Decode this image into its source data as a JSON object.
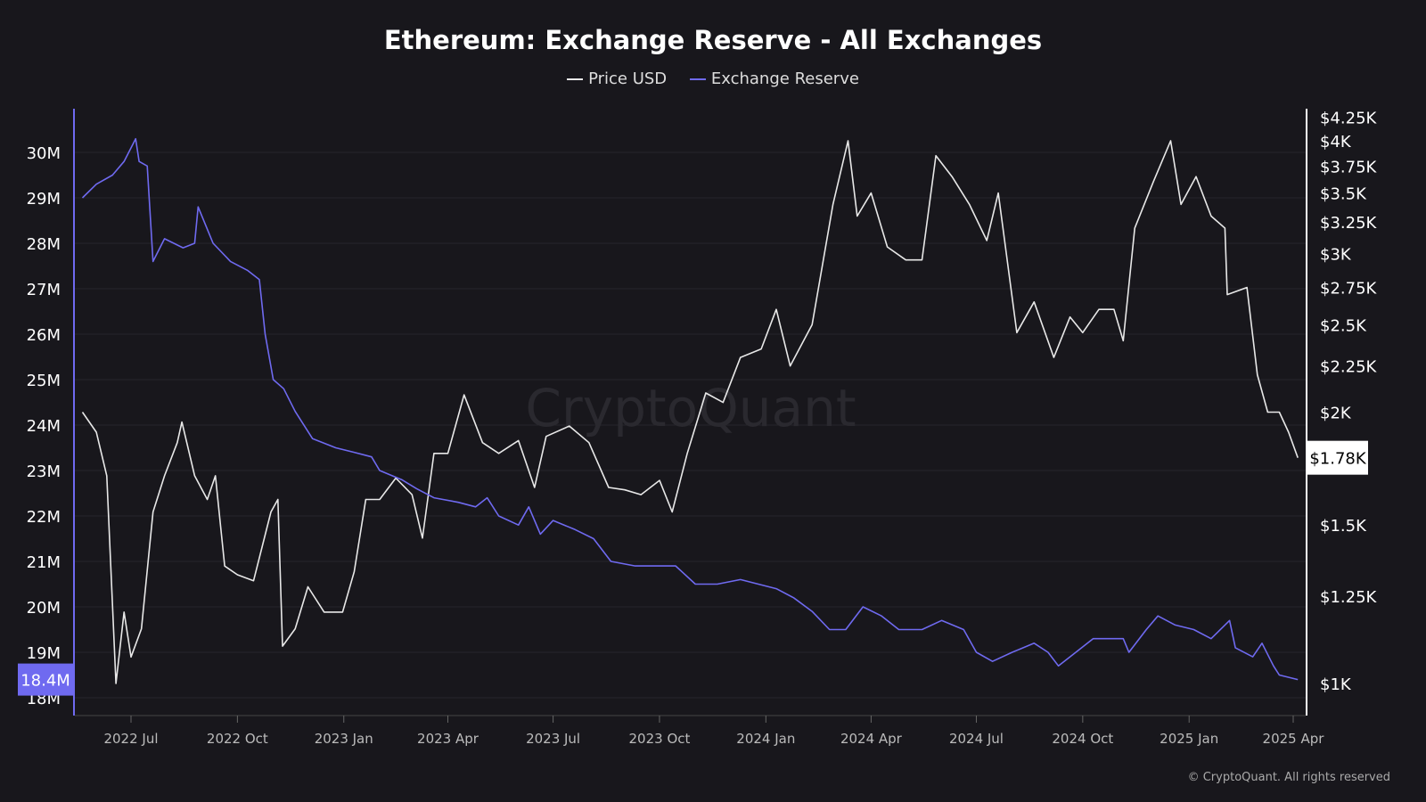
{
  "chart_data": {
    "type": "line",
    "title": "Ethereum: Exchange Reserve - All Exchanges",
    "watermark": "CryptoQuant",
    "copyright": "© CryptoQuant. All rights reserved",
    "legend": [
      "Price USD",
      "Exchange Reserve"
    ],
    "legend_position": "top-center",
    "grid": true,
    "colors": {
      "background": "#18171c",
      "price": "#e8e8e8",
      "reserve": "#6f6af0",
      "grid": "#26252b"
    },
    "x_ticks": [
      "2022 Jul",
      "2022 Oct",
      "2023 Jan",
      "2023 Apr",
      "2023 Jul",
      "2023 Oct",
      "2024 Jan",
      "2024 Apr",
      "2024 Jul",
      "2024 Oct",
      "2025 Jan",
      "2025 Apr"
    ],
    "x_tick_dates": [
      "2022-07-01",
      "2022-10-01",
      "2023-01-01",
      "2023-04-01",
      "2023-07-01",
      "2023-10-01",
      "2024-01-01",
      "2024-04-01",
      "2024-07-01",
      "2024-10-01",
      "2025-01-01",
      "2025-04-01"
    ],
    "left_axis": {
      "scale": "linear",
      "range": [
        17.6,
        30.9
      ],
      "ticks": [
        18,
        19,
        20,
        21,
        22,
        23,
        24,
        25,
        26,
        27,
        28,
        29,
        30
      ],
      "tick_labels": [
        "18M",
        "19M",
        "20M",
        "21M",
        "22M",
        "23M",
        "24M",
        "25M",
        "26M",
        "27M",
        "28M",
        "29M",
        "30M"
      ],
      "current_label": "18.4M",
      "current_value": 18.4
    },
    "right_axis": {
      "scale": "log",
      "ticks": [
        1000,
        1250,
        1500,
        1780,
        2000,
        2250,
        2500,
        2750,
        3000,
        3250,
        3500,
        3750,
        4000,
        4250
      ],
      "tick_labels": [
        "$1K",
        "$1.25K",
        "$1.5K",
        "$1.78K",
        "$2K",
        "$2.25K",
        "$2.5K",
        "$2.75K",
        "$3K",
        "$3.25K",
        "$3.5K",
        "$3.75K",
        "$4K",
        "$4.25K"
      ],
      "current_label": "$1.78K",
      "current_value": 1780
    },
    "series": [
      {
        "name": "Price USD",
        "axis": "right",
        "unit": "USD",
        "x": [
          "2022-05-20",
          "2022-06-01",
          "2022-06-10",
          "2022-06-18",
          "2022-06-25",
          "2022-07-01",
          "2022-07-10",
          "2022-07-20",
          "2022-07-30",
          "2022-08-10",
          "2022-08-14",
          "2022-08-25",
          "2022-09-05",
          "2022-09-12",
          "2022-09-20",
          "2022-10-01",
          "2022-10-15",
          "2022-10-30",
          "2022-11-05",
          "2022-11-09",
          "2022-11-20",
          "2022-12-01",
          "2022-12-15",
          "2022-12-31",
          "2023-01-10",
          "2023-01-20",
          "2023-02-01",
          "2023-02-15",
          "2023-03-01",
          "2023-03-10",
          "2023-03-20",
          "2023-04-01",
          "2023-04-15",
          "2023-05-01",
          "2023-05-15",
          "2023-06-01",
          "2023-06-15",
          "2023-06-25",
          "2023-07-15",
          "2023-08-01",
          "2023-08-18",
          "2023-09-01",
          "2023-09-15",
          "2023-10-01",
          "2023-10-12",
          "2023-10-25",
          "2023-11-10",
          "2023-11-25",
          "2023-12-10",
          "2023-12-28",
          "2024-01-10",
          "2024-01-22",
          "2024-02-10",
          "2024-02-28",
          "2024-03-12",
          "2024-03-20",
          "2024-04-01",
          "2024-04-15",
          "2024-05-01",
          "2024-05-15",
          "2024-05-27",
          "2024-06-10",
          "2024-06-25",
          "2024-07-10",
          "2024-07-20",
          "2024-08-05",
          "2024-08-20",
          "2024-09-06",
          "2024-09-20",
          "2024-10-01",
          "2024-10-15",
          "2024-10-28",
          "2024-11-05",
          "2024-11-15",
          "2024-12-01",
          "2024-12-16",
          "2024-12-25",
          "2025-01-07",
          "2025-01-20",
          "2025-02-01",
          "2025-02-03",
          "2025-02-20",
          "2025-03-01",
          "2025-03-10",
          "2025-03-20",
          "2025-03-28",
          "2025-04-05"
        ],
        "values": [
          2000,
          1900,
          1700,
          1000,
          1200,
          1070,
          1150,
          1550,
          1700,
          1850,
          1950,
          1700,
          1600,
          1700,
          1350,
          1320,
          1300,
          1550,
          1600,
          1100,
          1150,
          1280,
          1200,
          1200,
          1330,
          1600,
          1600,
          1690,
          1620,
          1450,
          1800,
          1800,
          2090,
          1850,
          1800,
          1860,
          1650,
          1880,
          1930,
          1850,
          1650,
          1640,
          1620,
          1680,
          1550,
          1800,
          2100,
          2050,
          2300,
          2350,
          2600,
          2250,
          2500,
          3400,
          4000,
          3300,
          3500,
          3050,
          2950,
          2950,
          3850,
          3650,
          3400,
          3100,
          3500,
          2450,
          2650,
          2300,
          2550,
          2450,
          2600,
          2600,
          2400,
          3200,
          3600,
          4000,
          3400,
          3650,
          3300,
          3200,
          2700,
          2750,
          2200,
          2000,
          2000,
          1900,
          1780
        ]
      },
      {
        "name": "Exchange Reserve",
        "axis": "left",
        "unit": "ETH (M)",
        "x": [
          "2022-05-20",
          "2022-06-01",
          "2022-06-15",
          "2022-06-25",
          "2022-07-05",
          "2022-07-08",
          "2022-07-15",
          "2022-07-20",
          "2022-07-30",
          "2022-08-15",
          "2022-08-25",
          "2022-08-28",
          "2022-09-10",
          "2022-09-25",
          "2022-10-10",
          "2022-10-20",
          "2022-10-25",
          "2022-11-01",
          "2022-11-10",
          "2022-11-20",
          "2022-12-05",
          "2022-12-25",
          "2023-01-10",
          "2023-01-25",
          "2023-02-01",
          "2023-02-20",
          "2023-03-05",
          "2023-03-20",
          "2023-04-10",
          "2023-04-25",
          "2023-05-05",
          "2023-05-15",
          "2023-06-01",
          "2023-06-10",
          "2023-06-20",
          "2023-07-01",
          "2023-07-20",
          "2023-08-05",
          "2023-08-20",
          "2023-09-10",
          "2023-10-01",
          "2023-10-15",
          "2023-11-01",
          "2023-11-20",
          "2023-12-10",
          "2024-01-10",
          "2024-01-25",
          "2024-02-10",
          "2024-02-25",
          "2024-03-10",
          "2024-03-25",
          "2024-04-10",
          "2024-04-25",
          "2024-05-15",
          "2024-06-01",
          "2024-06-20",
          "2024-07-01",
          "2024-07-15",
          "2024-08-01",
          "2024-08-20",
          "2024-09-01",
          "2024-09-10",
          "2024-09-25",
          "2024-10-10",
          "2024-10-25",
          "2024-11-05",
          "2024-11-10",
          "2024-11-25",
          "2024-12-05",
          "2024-12-20",
          "2025-01-05",
          "2025-01-20",
          "2025-02-01",
          "2025-02-05",
          "2025-02-10",
          "2025-02-25",
          "2025-03-05",
          "2025-03-15",
          "2025-03-20",
          "2025-04-05"
        ],
        "values": [
          29.0,
          29.3,
          29.5,
          29.8,
          30.3,
          29.8,
          29.7,
          27.6,
          28.1,
          27.9,
          28.0,
          28.8,
          28.0,
          27.6,
          27.4,
          27.2,
          26.0,
          25.0,
          24.8,
          24.3,
          23.7,
          23.5,
          23.4,
          23.3,
          23.0,
          22.8,
          22.6,
          22.4,
          22.3,
          22.2,
          22.4,
          22.0,
          21.8,
          22.2,
          21.6,
          21.9,
          21.7,
          21.5,
          21.0,
          20.9,
          20.9,
          20.9,
          20.5,
          20.5,
          20.6,
          20.4,
          20.2,
          19.9,
          19.5,
          19.5,
          20.0,
          19.8,
          19.5,
          19.5,
          19.7,
          19.5,
          19.0,
          18.8,
          19.0,
          19.2,
          19.0,
          18.7,
          19.0,
          19.3,
          19.3,
          19.3,
          19.0,
          19.5,
          19.8,
          19.6,
          19.5,
          19.3,
          19.6,
          19.7,
          19.1,
          18.9,
          19.2,
          18.7,
          18.5,
          18.4
        ]
      }
    ]
  }
}
